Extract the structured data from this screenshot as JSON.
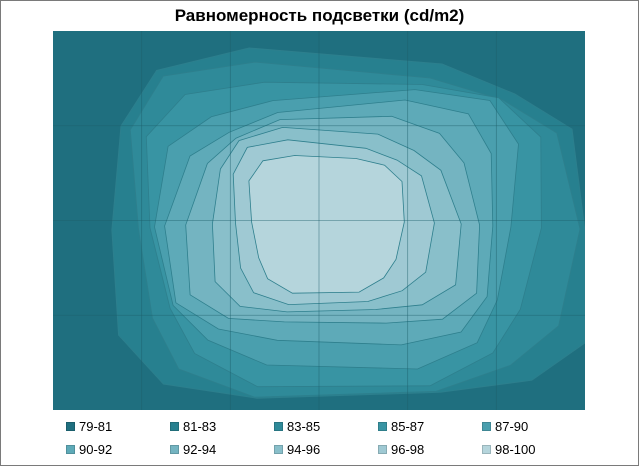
{
  "chart_data": {
    "type": "heatmap",
    "subtype": "contour",
    "title": "Равномерность подсветки (cd/m2)",
    "grid": true,
    "columns": 6,
    "rows": 4,
    "legend_position": "bottom",
    "levels": [
      {
        "label": "79-81",
        "color": "#1f6f7f"
      },
      {
        "label": "81-83",
        "color": "#27808f"
      },
      {
        "label": "83-85",
        "color": "#2f8a99"
      },
      {
        "label": "85-87",
        "color": "#3894a3"
      },
      {
        "label": "87-90",
        "color": "#4a9fae"
      },
      {
        "label": "90-92",
        "color": "#5eaab8"
      },
      {
        "label": "92-94",
        "color": "#74b4c1"
      },
      {
        "label": "94-96",
        "color": "#89bfca"
      },
      {
        "label": "96-98",
        "color": "#9fc9d3"
      },
      {
        "label": "98-100",
        "color": "#b5d5dc"
      }
    ]
  }
}
